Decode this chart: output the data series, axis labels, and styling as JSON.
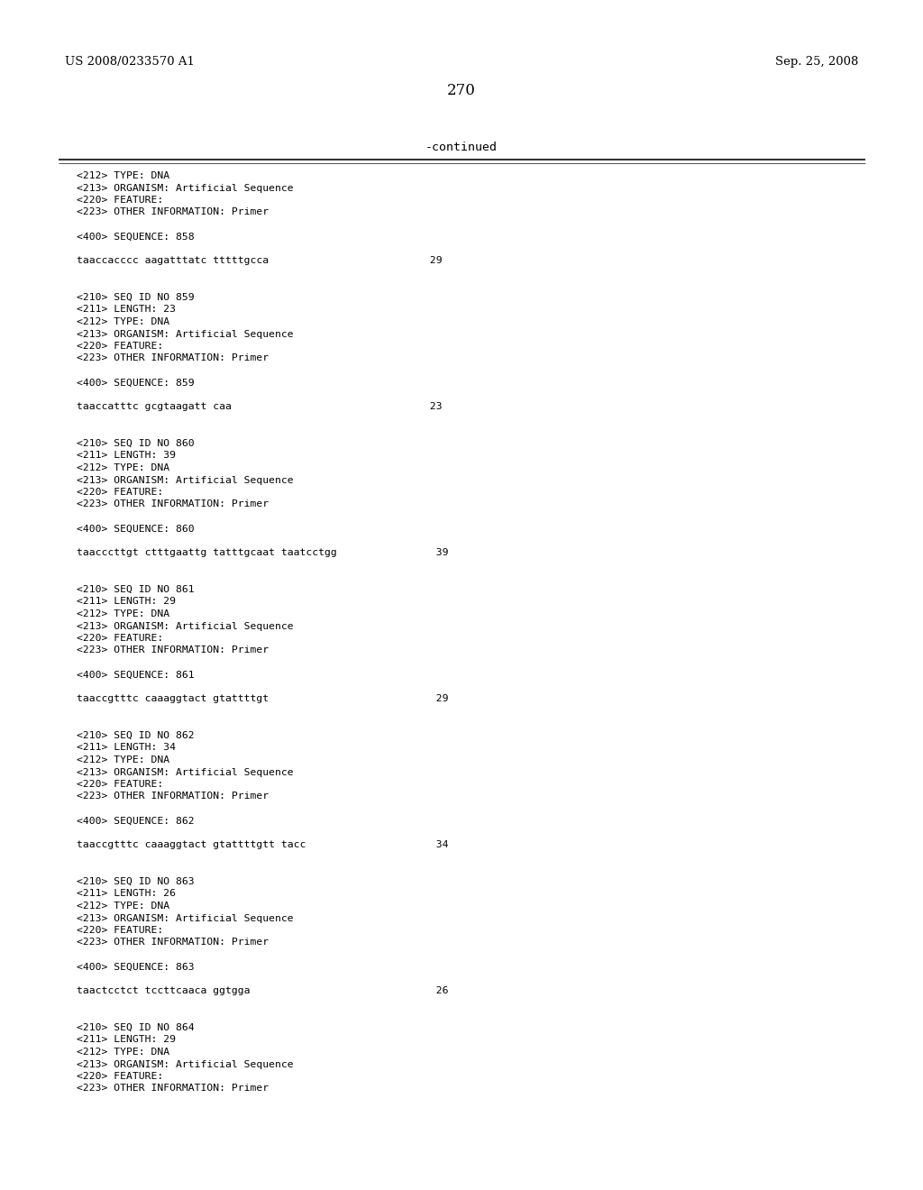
{
  "page_number": "270",
  "header_left": "US 2008/0233570 A1",
  "header_right": "Sep. 25, 2008",
  "continued_label": "-continued",
  "background_color": "#ffffff",
  "text_color": "#000000",
  "font_size": 8.2,
  "header_font_size": 9.5,
  "page_num_font_size": 12,
  "continued_font_size": 9.5,
  "content_lines": [
    "<212> TYPE: DNA",
    "<213> ORGANISM: Artificial Sequence",
    "<220> FEATURE:",
    "<223> OTHER INFORMATION: Primer",
    "",
    "<400> SEQUENCE: 858",
    "",
    "taaccacccc aagatttatc tttttgcca                          29",
    "",
    "",
    "<210> SEQ ID NO 859",
    "<211> LENGTH: 23",
    "<212> TYPE: DNA",
    "<213> ORGANISM: Artificial Sequence",
    "<220> FEATURE:",
    "<223> OTHER INFORMATION: Primer",
    "",
    "<400> SEQUENCE: 859",
    "",
    "taaccatttc gcgtaagatt caa                                23",
    "",
    "",
    "<210> SEQ ID NO 860",
    "<211> LENGTH: 39",
    "<212> TYPE: DNA",
    "<213> ORGANISM: Artificial Sequence",
    "<220> FEATURE:",
    "<223> OTHER INFORMATION: Primer",
    "",
    "<400> SEQUENCE: 860",
    "",
    "taacccttgt ctttgaattg tatttgcaat taatcctgg                39",
    "",
    "",
    "<210> SEQ ID NO 861",
    "<211> LENGTH: 29",
    "<212> TYPE: DNA",
    "<213> ORGANISM: Artificial Sequence",
    "<220> FEATURE:",
    "<223> OTHER INFORMATION: Primer",
    "",
    "<400> SEQUENCE: 861",
    "",
    "taaccgtttc caaaggtact gtattttgt                           29",
    "",
    "",
    "<210> SEQ ID NO 862",
    "<211> LENGTH: 34",
    "<212> TYPE: DNA",
    "<213> ORGANISM: Artificial Sequence",
    "<220> FEATURE:",
    "<223> OTHER INFORMATION: Primer",
    "",
    "<400> SEQUENCE: 862",
    "",
    "taaccgtttc caaaggtact gtattttgtt tacc                     34",
    "",
    "",
    "<210> SEQ ID NO 863",
    "<211> LENGTH: 26",
    "<212> TYPE: DNA",
    "<213> ORGANISM: Artificial Sequence",
    "<220> FEATURE:",
    "<223> OTHER INFORMATION: Primer",
    "",
    "<400> SEQUENCE: 863",
    "",
    "taactcctct tccttcaaca ggtgga                              26",
    "",
    "",
    "<210> SEQ ID NO 864",
    "<211> LENGTH: 29",
    "<212> TYPE: DNA",
    "<213> ORGANISM: Artificial Sequence",
    "<220> FEATURE:",
    "<223> OTHER INFORMATION: Primer"
  ]
}
